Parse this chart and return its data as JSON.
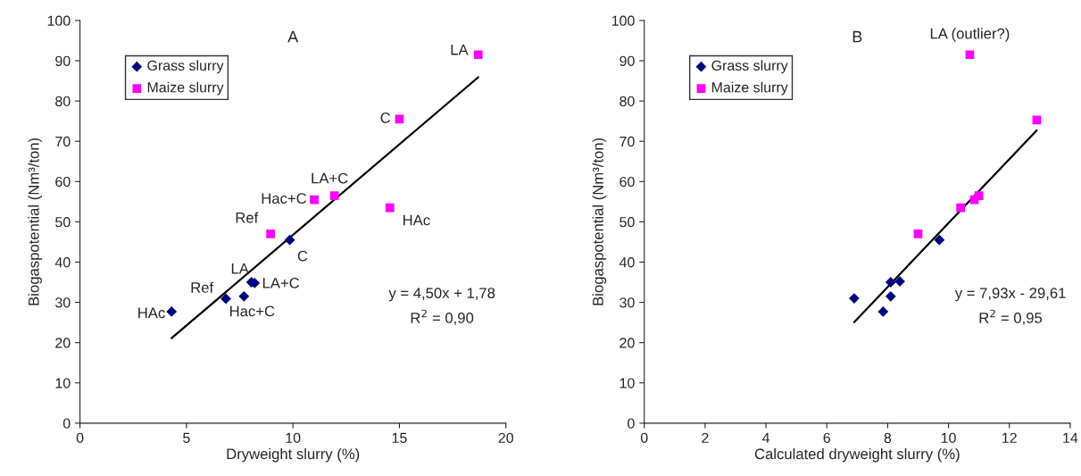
{
  "chart_data": [
    {
      "type": "scatter",
      "title": "A",
      "xlabel": "Dryweight slurry (%)",
      "ylabel": "Biogaspotential (Nm³/ton)",
      "xlim": [
        0,
        20
      ],
      "xticks": [
        0,
        5,
        10,
        15,
        20
      ],
      "ylim": [
        0,
        100
      ],
      "yticks": [
        0,
        10,
        20,
        30,
        40,
        50,
        60,
        70,
        80,
        90,
        100
      ],
      "grid": false,
      "legend": "top left",
      "series": [
        {
          "name": "Grass slurry",
          "color": "#000080",
          "marker": "diamond",
          "x": [
            4.3,
            6.85,
            7.7,
            8.05,
            8.2,
            9.85
          ],
          "values": [
            27.7,
            30.9,
            31.5,
            35,
            34.8,
            45.5
          ]
        },
        {
          "name": "Maize slurry",
          "color": "#ff00ff",
          "marker": "square",
          "x": [
            8.95,
            11,
            11.95,
            14.55,
            15,
            18.7
          ],
          "values": [
            47,
            55.5,
            56.5,
            53.5,
            75.5,
            91.5
          ]
        },
        {
          "type": "line",
          "color": "#000000",
          "x": [
            4.3,
            18.7
          ],
          "values": [
            21.1,
            85.9
          ]
        }
      ],
      "annotations": [
        {
          "text": "HAc",
          "x": 4.3,
          "y": 27.7
        },
        {
          "text": "Ref",
          "x": 6.85,
          "y": 30.9
        },
        {
          "text": "Hac+C",
          "x": 7.7,
          "y": 31.5
        },
        {
          "text": "LA",
          "x": 8.05,
          "y": 35
        },
        {
          "text": "LA+C",
          "x": 8.2,
          "y": 34.8
        },
        {
          "text": "C",
          "x": 9.85,
          "y": 45.5
        },
        {
          "text": "Ref",
          "x": 8.95,
          "y": 47
        },
        {
          "text": "Hac+C",
          "x": 11,
          "y": 55.5
        },
        {
          "text": "LA+C",
          "x": 11.95,
          "y": 56.5
        },
        {
          "text": "HAc",
          "x": 14.55,
          "y": 53.5
        },
        {
          "text": "C",
          "x": 15,
          "y": 75.5
        },
        {
          "text": "LA",
          "x": 18.7,
          "y": 91.5
        },
        "y = 4,50x + 1,78",
        "R$^{2}$ = 0,90"
      ]
    },
    {
      "type": "scatter",
      "title": "B",
      "xlabel": "Calculated dryweight slurry (%)",
      "ylabel": "Biogaspotential (Nm³/ton)",
      "xlim": [
        0,
        14
      ],
      "xticks": [
        0,
        2,
        4,
        6,
        8,
        10,
        12,
        14
      ],
      "ylim": [
        0,
        100
      ],
      "yticks": [
        0,
        10,
        20,
        30,
        40,
        50,
        60,
        70,
        80,
        90,
        100
      ],
      "grid": false,
      "legend": "top left",
      "series": [
        {
          "name": "Grass slurry",
          "color": "#000080",
          "marker": "diamond",
          "x": [
            6.9,
            7.85,
            8.1,
            8.1,
            8.4,
            9.7
          ],
          "values": [
            31,
            27.7,
            31.5,
            35,
            35.2,
            45.5
          ]
        },
        {
          "name": "Maize slurry",
          "color": "#ff00ff",
          "marker": "square",
          "x": [
            9,
            10.4,
            10.85,
            11,
            10.7,
            12.9
          ],
          "values": [
            47,
            53.5,
            55.5,
            56.5,
            91.5,
            75.3
          ]
        },
        {
          "type": "line",
          "color": "#000000",
          "x": [
            6.9,
            12.9
          ],
          "values": [
            25.1,
            72.7
          ]
        }
      ],
      "annotations": [
        {
          "text": "LA (outlier?)",
          "x": 10.7,
          "y": 91.5
        },
        "y = 7,93x - 29,61",
        "R$^{2}$ = 0,95"
      ]
    }
  ]
}
